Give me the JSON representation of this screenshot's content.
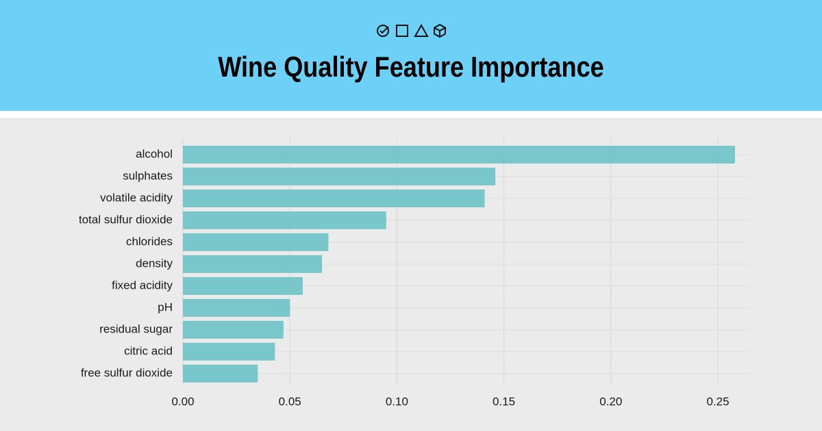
{
  "chart_data": {
    "type": "barh",
    "title": "Wine Quality Feature Importance",
    "categories": [
      "alcohol",
      "sulphates",
      "volatile acidity",
      "total sulfur dioxide",
      "chlorides",
      "density",
      "fixed acidity",
      "pH",
      "residual sugar",
      "citric acid",
      "free sulfur dioxide"
    ],
    "values": [
      0.258,
      0.146,
      0.141,
      0.095,
      0.068,
      0.065,
      0.056,
      0.05,
      0.047,
      0.043,
      0.035
    ],
    "color": "#79c7ca",
    "xlim": [
      0,
      0.2644
    ],
    "xticks": [
      {
        "value": 0,
        "label": "0.00"
      },
      {
        "value": 0.05,
        "label": "0.05"
      },
      {
        "value": 0.1,
        "label": "0.10"
      },
      {
        "value": 0.15,
        "label": "0.15"
      },
      {
        "value": 0.2,
        "label": "0.20"
      },
      {
        "value": 0.25,
        "label": "0.25"
      }
    ],
    "grid": true
  }
}
